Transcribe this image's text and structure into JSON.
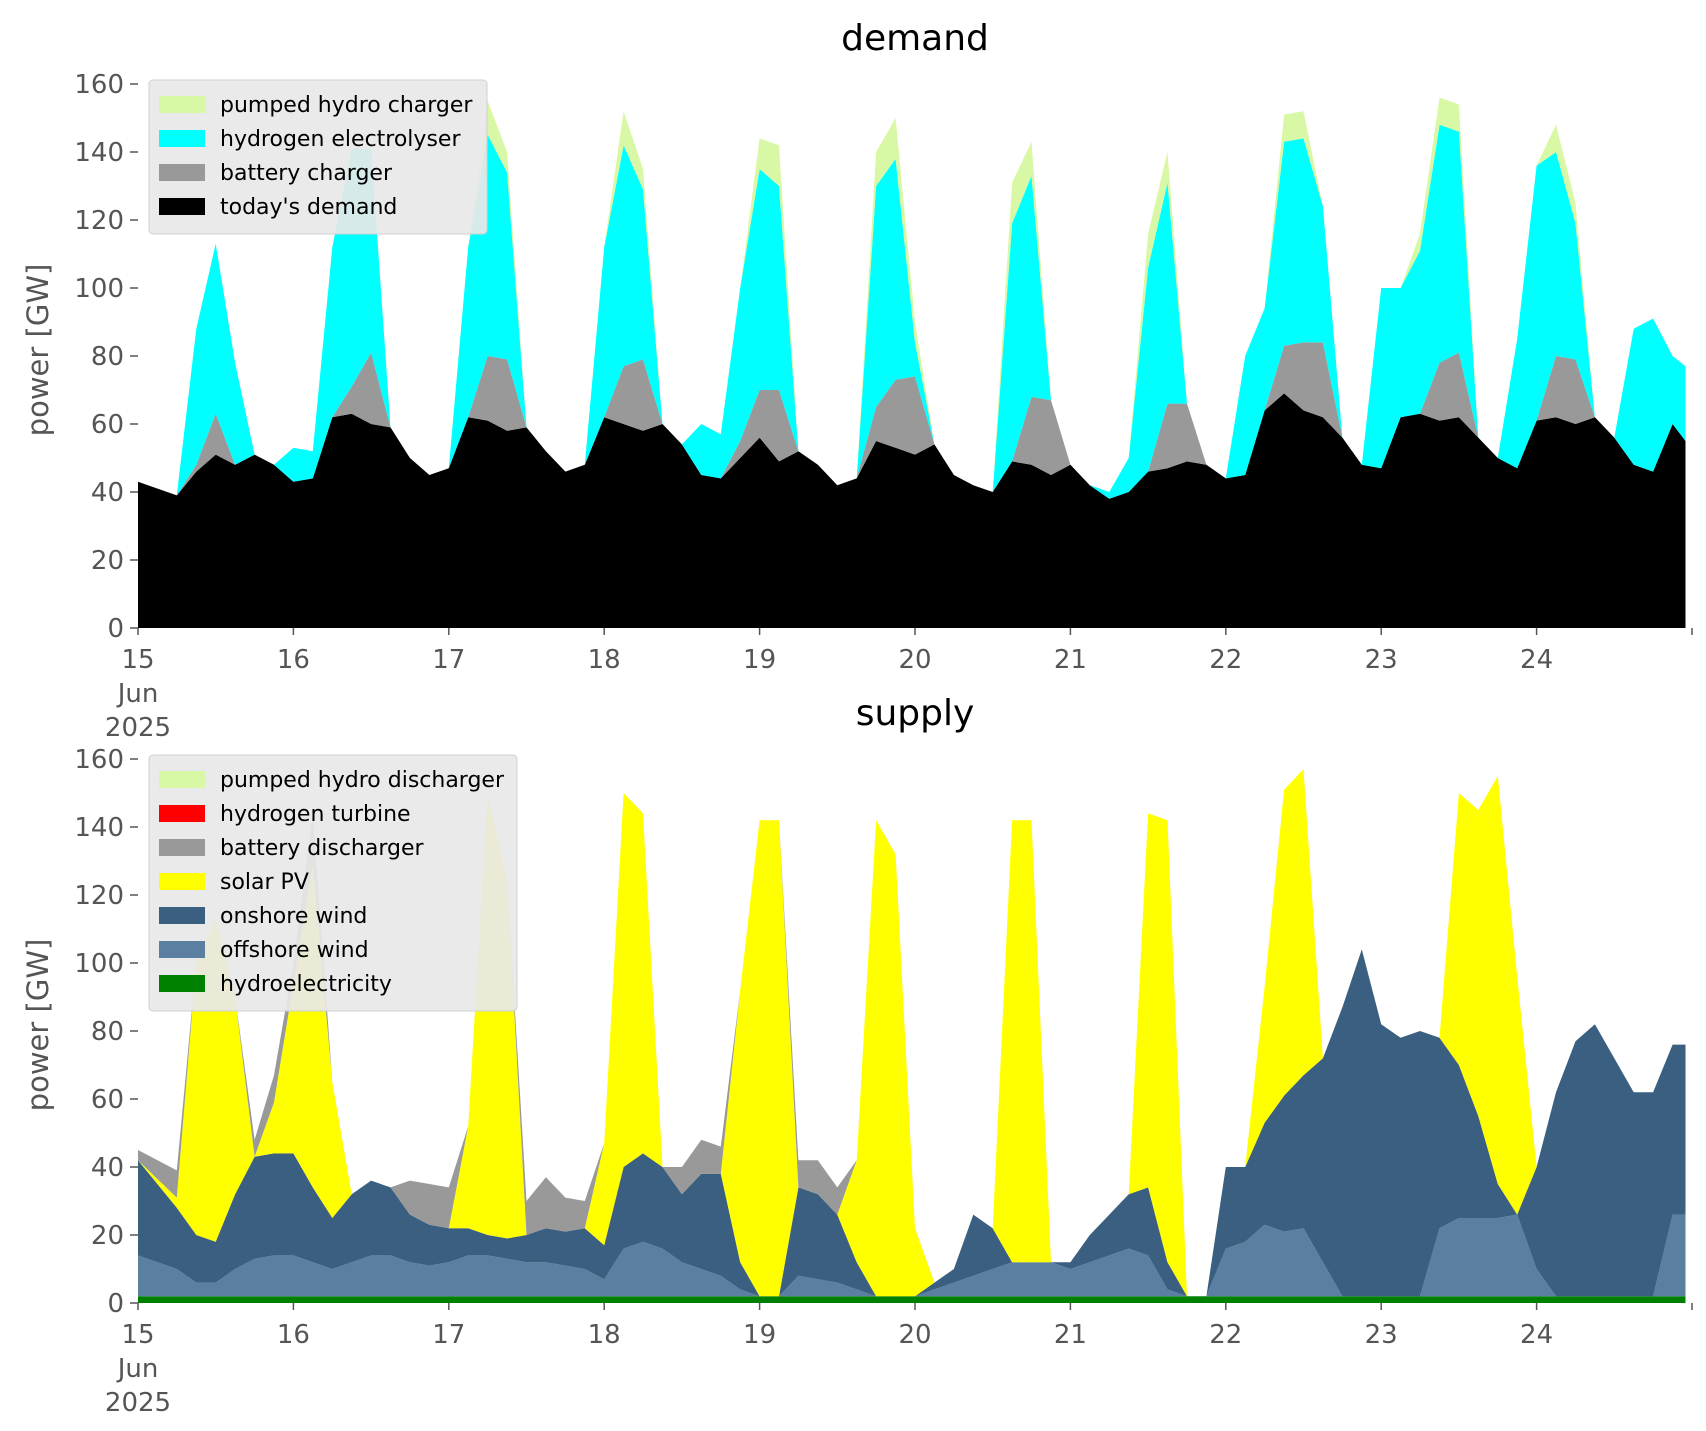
{
  "chart_data": [
    {
      "type": "area",
      "stacked": true,
      "title": "demand",
      "ylabel": "power [GW]",
      "xlabel": "",
      "ylim": [
        0,
        160
      ],
      "xlim": [
        "2025-06-15T00:00",
        "2025-06-25T00:00"
      ],
      "x_tick_labels": [
        "15\nJun\n2025",
        "16",
        "17",
        "18",
        "19",
        "20",
        "21",
        "22",
        "23",
        "24"
      ],
      "y_tick_labels": [
        "0",
        "20",
        "40",
        "60",
        "80",
        "100",
        "120",
        "140",
        "160"
      ],
      "legend_position": "upper-left",
      "grid": false,
      "hours": [
        0,
        6,
        9,
        12,
        15,
        18,
        21,
        24,
        27,
        30,
        33,
        36,
        39,
        42,
        45,
        48,
        51,
        54,
        57,
        60,
        63,
        66,
        69,
        72,
        75,
        78,
        81,
        84,
        87,
        90,
        93,
        96,
        99,
        102,
        105,
        108,
        111,
        114,
        117,
        120,
        123,
        126,
        129,
        132,
        135,
        138,
        141,
        144,
        147,
        150,
        153,
        156,
        159,
        162,
        165,
        168,
        171,
        174,
        177,
        180,
        183,
        186,
        189,
        192,
        195,
        198,
        201,
        204,
        207,
        210,
        213,
        216,
        219,
        222,
        225,
        228,
        231,
        234,
        237,
        239
      ],
      "series": [
        {
          "name": "today's demand",
          "color": "#000000",
          "values": [
            43,
            39,
            46,
            51,
            48,
            51,
            48,
            43,
            44,
            62,
            63,
            60,
            59,
            50,
            45,
            47,
            62,
            61,
            58,
            59,
            52,
            46,
            48,
            62,
            60,
            58,
            60,
            54,
            45,
            44,
            50,
            56,
            49,
            52,
            48,
            42,
            44,
            55,
            53,
            51,
            54,
            45,
            42,
            40,
            49,
            48,
            45,
            48,
            42,
            38,
            40,
            46,
            47,
            49,
            48,
            44,
            45,
            64,
            69,
            64,
            62,
            56,
            48,
            47,
            62,
            63,
            61,
            62,
            56,
            50,
            47,
            61,
            62,
            60,
            62,
            56,
            48,
            46,
            60,
            55
          ]
        },
        {
          "name": "battery charger",
          "color": "#999999",
          "values": [
            0,
            0,
            2,
            12,
            0,
            0,
            0,
            0,
            0,
            0,
            8,
            21,
            0,
            0,
            0,
            0,
            0,
            19,
            21,
            0,
            0,
            0,
            0,
            0,
            17,
            21,
            0,
            0,
            0,
            0,
            5,
            14,
            21,
            0,
            0,
            0,
            0,
            10,
            20,
            23,
            0,
            0,
            0,
            0,
            0,
            20,
            22,
            0,
            0,
            0,
            0,
            0,
            19,
            17,
            0,
            0,
            0,
            0,
            14,
            20,
            22,
            0,
            0,
            0,
            0,
            0,
            17,
            19,
            0,
            0,
            0,
            0,
            18,
            19,
            0,
            0,
            0,
            0,
            0,
            0
          ]
        },
        {
          "name": "hydrogen electrolyser",
          "color": "#00ffff",
          "values": [
            0,
            0,
            40,
            50,
            30,
            0,
            0,
            10,
            8,
            50,
            70,
            60,
            0,
            0,
            0,
            0,
            50,
            65,
            55,
            0,
            0,
            0,
            0,
            50,
            65,
            50,
            0,
            0,
            15,
            13,
            45,
            65,
            60,
            0,
            0,
            0,
            0,
            65,
            65,
            10,
            0,
            0,
            0,
            0,
            70,
            65,
            0,
            0,
            0,
            2,
            10,
            60,
            65,
            0,
            0,
            0,
            35,
            30,
            60,
            60,
            40,
            0,
            0,
            53,
            38,
            48,
            70,
            65,
            0,
            0,
            38,
            75,
            60,
            40,
            0,
            0,
            40,
            45,
            20,
            22
          ]
        },
        {
          "name": "pumped hydro charger",
          "color": "#d9f8a5",
          "values": [
            0,
            0,
            0,
            0,
            0,
            0,
            0,
            0,
            0,
            0,
            0,
            0,
            0,
            0,
            0,
            0,
            0,
            10,
            6,
            0,
            0,
            0,
            0,
            0,
            10,
            6,
            0,
            0,
            0,
            0,
            0,
            9,
            12,
            0,
            0,
            0,
            0,
            10,
            12,
            6,
            0,
            0,
            0,
            0,
            12,
            10,
            0,
            0,
            0,
            0,
            0,
            10,
            9,
            0,
            0,
            0,
            0,
            0,
            8,
            8,
            0,
            0,
            0,
            0,
            0,
            5,
            8,
            8,
            0,
            0,
            0,
            0,
            8,
            6,
            0,
            0,
            0,
            0,
            0,
            0
          ]
        }
      ]
    },
    {
      "type": "area",
      "stacked": true,
      "title": "supply",
      "ylabel": "power [GW]",
      "xlabel": "",
      "ylim": [
        0,
        160
      ],
      "xlim": [
        "2025-06-15T00:00",
        "2025-06-25T00:00"
      ],
      "x_tick_labels": [
        "15\nJun\n2025",
        "16",
        "17",
        "18",
        "19",
        "20",
        "21",
        "22",
        "23",
        "24"
      ],
      "y_tick_labels": [
        "0",
        "20",
        "40",
        "60",
        "80",
        "100",
        "120",
        "140",
        "160"
      ],
      "legend_position": "upper-left",
      "grid": false,
      "hours": [
        0,
        6,
        9,
        12,
        15,
        18,
        21,
        24,
        27,
        30,
        33,
        36,
        39,
        42,
        45,
        48,
        51,
        54,
        57,
        60,
        63,
        66,
        69,
        72,
        75,
        78,
        81,
        84,
        87,
        90,
        93,
        96,
        99,
        102,
        105,
        108,
        111,
        114,
        117,
        120,
        123,
        126,
        129,
        132,
        135,
        138,
        141,
        144,
        147,
        150,
        153,
        156,
        159,
        162,
        165,
        168,
        171,
        174,
        177,
        180,
        183,
        186,
        189,
        192,
        195,
        198,
        201,
        204,
        207,
        210,
        213,
        216,
        219,
        222,
        225,
        228,
        231,
        234,
        237,
        239
      ],
      "series": [
        {
          "name": "hydroelectricity",
          "color": "#008000",
          "values": [
            2,
            2,
            2,
            2,
            2,
            2,
            2,
            2,
            2,
            2,
            2,
            2,
            2,
            2,
            2,
            2,
            2,
            2,
            2,
            2,
            2,
            2,
            2,
            2,
            2,
            2,
            2,
            2,
            2,
            2,
            2,
            2,
            2,
            2,
            2,
            2,
            2,
            2,
            2,
            2,
            2,
            2,
            2,
            2,
            2,
            2,
            2,
            2,
            2,
            2,
            2,
            2,
            2,
            2,
            2,
            2,
            2,
            2,
            2,
            2,
            2,
            2,
            2,
            2,
            2,
            2,
            2,
            2,
            2,
            2,
            2,
            2,
            2,
            2,
            2,
            2,
            2,
            2,
            2,
            2
          ]
        },
        {
          "name": "offshore wind",
          "color": "#5a7fa0",
          "values": [
            12,
            8,
            4,
            4,
            8,
            11,
            12,
            12,
            10,
            8,
            10,
            12,
            12,
            10,
            9,
            10,
            12,
            12,
            11,
            10,
            10,
            9,
            8,
            5,
            14,
            16,
            14,
            10,
            8,
            6,
            2,
            0,
            0,
            6,
            5,
            4,
            2,
            0,
            0,
            0,
            2,
            4,
            6,
            8,
            10,
            10,
            10,
            8,
            10,
            12,
            14,
            12,
            2,
            0,
            0,
            14,
            16,
            21,
            19,
            20,
            10,
            0,
            0,
            0,
            0,
            0,
            20,
            23,
            23,
            23,
            24,
            8,
            0,
            0,
            0,
            0,
            0,
            0,
            24,
            24
          ]
        },
        {
          "name": "onshore wind",
          "color": "#3a5f80",
          "values": [
            28,
            18,
            14,
            12,
            22,
            30,
            30,
            30,
            22,
            15,
            20,
            22,
            20,
            14,
            12,
            10,
            8,
            6,
            6,
            8,
            10,
            10,
            12,
            10,
            24,
            26,
            24,
            20,
            28,
            30,
            8,
            0,
            0,
            26,
            25,
            20,
            8,
            0,
            0,
            0,
            2,
            4,
            18,
            12,
            0,
            0,
            0,
            2,
            8,
            12,
            16,
            20,
            8,
            0,
            0,
            24,
            22,
            30,
            40,
            45,
            60,
            85,
            102,
            80,
            76,
            78,
            56,
            45,
            30,
            10,
            0,
            30,
            60,
            75,
            80,
            70,
            60,
            60,
            50,
            50
          ]
        },
        {
          "name": "solar PV",
          "color": "#ffff00",
          "values": [
            0,
            3,
            80,
            95,
            58,
            0,
            15,
            50,
            95,
            40,
            0,
            0,
            0,
            0,
            0,
            0,
            30,
            130,
            105,
            0,
            0,
            0,
            0,
            30,
            110,
            100,
            0,
            0,
            0,
            0,
            80,
            140,
            140,
            0,
            0,
            0,
            30,
            140,
            130,
            20,
            0,
            0,
            0,
            0,
            130,
            130,
            0,
            0,
            0,
            0,
            0,
            110,
            130,
            0,
            0,
            0,
            0,
            40,
            90,
            90,
            0,
            0,
            0,
            0,
            0,
            0,
            0,
            80,
            90,
            120,
            70,
            0,
            0,
            0,
            0,
            0,
            0,
            0,
            0,
            0
          ]
        },
        {
          "name": "battery discharger",
          "color": "#999999",
          "values": [
            3,
            8,
            0,
            0,
            0,
            5,
            8,
            6,
            15,
            0,
            0,
            0,
            0,
            10,
            12,
            12,
            0,
            0,
            0,
            10,
            15,
            10,
            8,
            0,
            0,
            0,
            0,
            8,
            10,
            8,
            0,
            0,
            0,
            8,
            10,
            8,
            0,
            0,
            0,
            0,
            0,
            0,
            0,
            0,
            0,
            0,
            0,
            0,
            0,
            0,
            0,
            0,
            0,
            0,
            0,
            0,
            0,
            0,
            0,
            0,
            0,
            0,
            0,
            0,
            0,
            0,
            0,
            0,
            0,
            0,
            0,
            0,
            0,
            0,
            0,
            0,
            0,
            0,
            0,
            0
          ]
        },
        {
          "name": "hydrogen turbine",
          "color": "#ff0000",
          "values": [
            0,
            0,
            0,
            0,
            0,
            0,
            0,
            0,
            0,
            0,
            0,
            0,
            0,
            0,
            0,
            0,
            0,
            0,
            0,
            0,
            0,
            0,
            0,
            0,
            0,
            0,
            0,
            0,
            0,
            0,
            0,
            0,
            0,
            0,
            0,
            0,
            0,
            0,
            0,
            0,
            0,
            0,
            0,
            0,
            0,
            0,
            0,
            0,
            0,
            0,
            0,
            0,
            0,
            0,
            0,
            0,
            0,
            0,
            0,
            0,
            0,
            0,
            0,
            0,
            0,
            0,
            0,
            0,
            0,
            0,
            0,
            0,
            0,
            0,
            0,
            0,
            0,
            0,
            0,
            0
          ]
        },
        {
          "name": "pumped hydro discharger",
          "color": "#d9f8a5",
          "values": [
            0,
            0,
            0,
            0,
            0,
            0,
            0,
            0,
            0,
            0,
            0,
            0,
            0,
            0,
            0,
            0,
            0,
            0,
            0,
            0,
            0,
            0,
            0,
            0,
            0,
            0,
            0,
            0,
            0,
            0,
            0,
            0,
            0,
            0,
            0,
            0,
            0,
            0,
            0,
            0,
            0,
            0,
            0,
            0,
            0,
            0,
            0,
            0,
            0,
            0,
            0,
            0,
            0,
            0,
            0,
            0,
            0,
            0,
            0,
            0,
            0,
            0,
            0,
            0,
            0,
            0,
            0,
            0,
            0,
            0,
            0,
            0,
            0,
            0,
            0,
            0,
            0,
            0,
            0,
            0
          ]
        }
      ]
    }
  ]
}
